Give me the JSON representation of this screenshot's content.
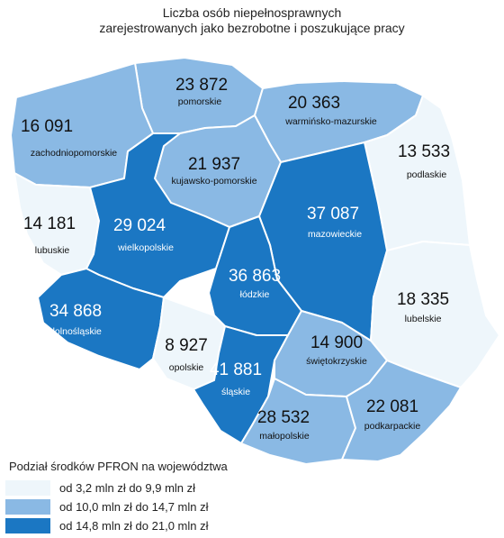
{
  "title": {
    "line1": "Liczba osób niepełnosprawnych",
    "line2": "zarejestrowanych jako bezrobotne i poszukujące pracy"
  },
  "legend": {
    "title": "Podział środków PFRON na województwa",
    "items": [
      {
        "label": "od 3,2 mln zł do 9,9 mln zł",
        "color": "#eef6fb"
      },
      {
        "label": "od 10,0 mln zł do 14,7 mln zł",
        "color": "#8ab9e4"
      },
      {
        "label": "od 14,8 mln zł do 21,0 mln zł",
        "color": "#1b77c3"
      }
    ]
  },
  "regions": [
    {
      "key": "pomorskie",
      "name": "pomorskie",
      "value": "23 872",
      "level": "mid"
    },
    {
      "key": "zachodniopomorskie",
      "name": "zachodniopomorskie",
      "value": "16 091",
      "level": "mid"
    },
    {
      "key": "warminsko-mazurskie",
      "name": "warmińsko-mazurskie",
      "value": "20 363",
      "level": "mid"
    },
    {
      "key": "podlaskie",
      "name": "podlaskie",
      "value": "13 533",
      "level": "low"
    },
    {
      "key": "kujawsko-pomorskie",
      "name": "kujawsko-pomorskie",
      "value": "21 937",
      "level": "mid"
    },
    {
      "key": "lubuskie",
      "name": "lubuskie",
      "value": "14 181",
      "level": "low"
    },
    {
      "key": "wielkopolskie",
      "name": "wielkopolskie",
      "value": "29 024",
      "level": "high"
    },
    {
      "key": "mazowieckie",
      "name": "mazowieckie",
      "value": "37 087",
      "level": "high"
    },
    {
      "key": "lodzkie",
      "name": "łódzkie",
      "value": "36 863",
      "level": "high"
    },
    {
      "key": "lubelskie",
      "name": "lubelskie",
      "value": "18 335",
      "level": "low"
    },
    {
      "key": "dolnoslaskie",
      "name": "dolnośląskie",
      "value": "34 868",
      "level": "high"
    },
    {
      "key": "opolskie",
      "name": "opolskie",
      "value": "8 927",
      "level": "low"
    },
    {
      "key": "slaskie",
      "name": "śląskie",
      "value": "41 881",
      "level": "high"
    },
    {
      "key": "swietokrzyskie",
      "name": "świętokrzyskie",
      "value": "14 900",
      "level": "mid"
    },
    {
      "key": "malopolskie",
      "name": "małopolskie",
      "value": "28 532",
      "level": "mid"
    },
    {
      "key": "podkarpackie",
      "name": "podkarpackie",
      "value": "22 081",
      "level": "mid"
    }
  ]
}
